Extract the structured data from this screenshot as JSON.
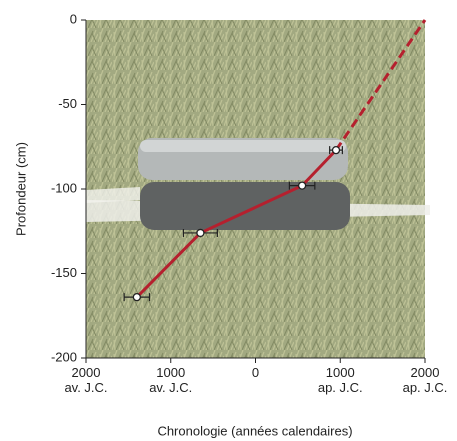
{
  "chart_data": {
    "type": "line",
    "x_label": "Chronologie (années calendaires)",
    "y_label": "Profondeur (cm)",
    "x": [
      -1400,
      -650,
      550,
      950
    ],
    "values": [
      -164,
      -126,
      -98,
      -77
    ],
    "x_errors": [
      150,
      200,
      150,
      75
    ],
    "extrapolation": {
      "x": 2000,
      "y": 0
    },
    "color": "#b5202e",
    "xlim": [
      -2000,
      2000
    ],
    "xticks": [
      {
        "value": -2000,
        "label": "2000\nav. J.C."
      },
      {
        "value": -1000,
        "label": "1000\nav. J.C."
      },
      0,
      {
        "value": 1000,
        "label": "1000\nap. J.C."
      },
      {
        "value": 2000,
        "label": "2000\nap. J.C."
      }
    ],
    "ylim": [
      -200,
      0
    ],
    "yticks": [
      0,
      -50,
      -100,
      -150,
      -200
    ]
  }
}
